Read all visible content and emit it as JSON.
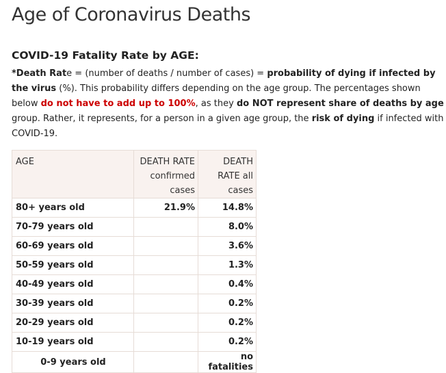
{
  "page_title": "Age of Coronavirus Deaths",
  "subtitle": "COVID-19 Fatality Rate by AGE:",
  "description": {
    "p1": "*Death Rat",
    "p1b": "e",
    "p2": " = (number of deaths / number of cases) = ",
    "p3": "probability of dying if infected by the virus",
    "p4": " (%). This probability differs depending on the age group. The percentages shown below ",
    "p5": "do not have to add up to 100%",
    "p6": ", as they ",
    "p7": "do NOT represent share of deaths by age",
    "p8": " group. Rather, it represents, for a person in a given age group, the ",
    "p9": "risk of dying",
    "p10": " if infected with COVID-19."
  },
  "table": {
    "headers": {
      "age": "AGE",
      "confirmed": "DEATH RATE confirmed cases",
      "all": "DEATH RATE all cases"
    },
    "rows": [
      {
        "age": "80+ years old",
        "confirmed": "21.9%",
        "all": "14.8%"
      },
      {
        "age": "70-79 years old",
        "confirmed": "",
        "all": "8.0%"
      },
      {
        "age": "60-69 years old",
        "confirmed": "",
        "all": "3.6%"
      },
      {
        "age": "50-59 years old",
        "confirmed": "",
        "all": "1.3%"
      },
      {
        "age": "40-49 years old",
        "confirmed": "",
        "all": "0.4%"
      },
      {
        "age": "30-39 years old",
        "confirmed": "",
        "all": "0.2%"
      },
      {
        "age": "20-29 years old",
        "confirmed": "",
        "all": "0.2%"
      },
      {
        "age": "10-19 years old",
        "confirmed": "",
        "all": "0.2%"
      },
      {
        "age": "0-9 years old",
        "confirmed": "",
        "all": "no fatalities"
      }
    ]
  },
  "colors": {
    "highlight_red": "#cc0000",
    "header_bg": "#f9f2ef",
    "border": "#e6dcd6"
  }
}
